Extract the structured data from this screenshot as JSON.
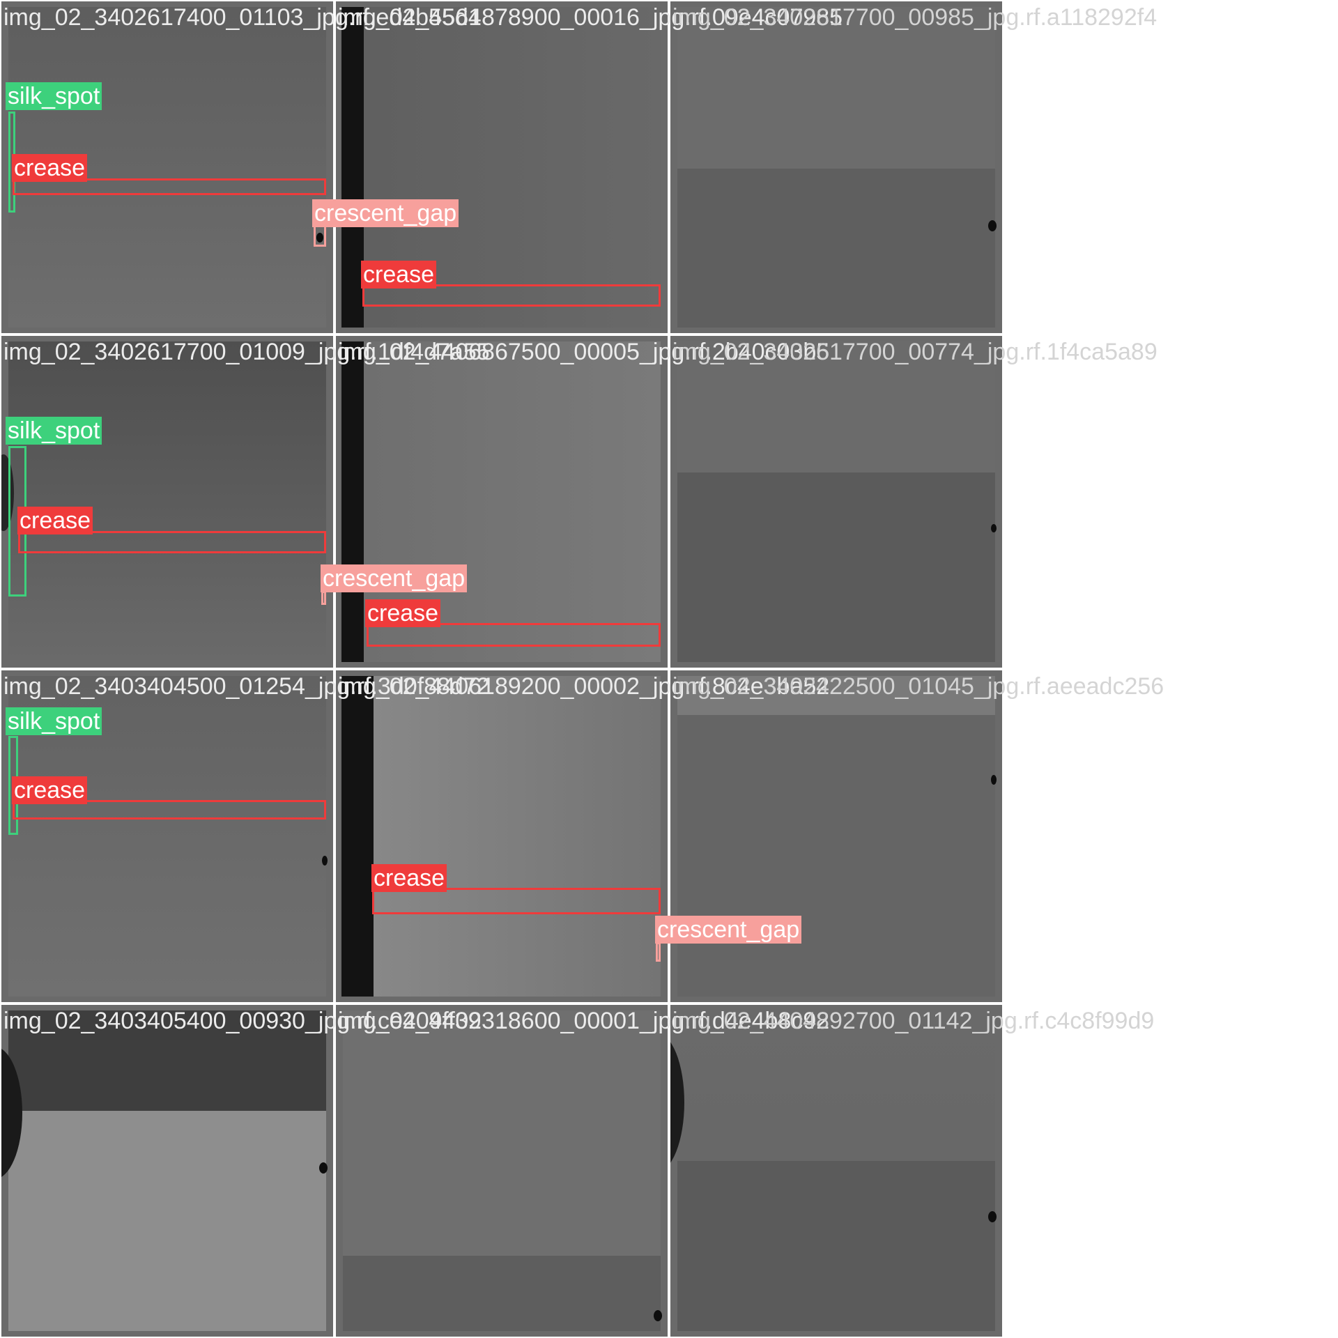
{
  "grid": {
    "tiles": [
      {
        "filename": "img_02_3402617400_01103_jpg.rf.ed4b55d4"
      },
      {
        "filename": "img_02_4561878900_00016_jpg.rf.09e4c07985"
      },
      {
        "filename": "img_02_3402617700_00985_jpg.rf.a118292f4"
      },
      {
        "filename": "img_02_3402617700_01009_jpg.rf.1df4d7a55"
      },
      {
        "filename": "img_02_4406867500_00005_jpg.rf.2b40c03b5"
      },
      {
        "filename": "img_02_3402617700_00774_jpg.rf.1f4ca5a89"
      },
      {
        "filename": "img_02_3403404500_01254_jpg.rf.3d0f88d72"
      },
      {
        "filename": "img_02_4406189200_00002_jpg.rf.8c4e3ba52"
      },
      {
        "filename": "img_02_3402422500_01045_jpg.rf.aeeadc256"
      },
      {
        "filename": "img_02_3403405400_00930_jpg.rf.ce409ff39"
      },
      {
        "filename": "img_02_4402318600_00001_jpg.rf.d4e4b8c92"
      },
      {
        "filename": "img_02_4404892700_01142_jpg.rf.c4c8f99d9"
      }
    ]
  },
  "labels": {
    "silk_spot": "silk_spot",
    "crease": "crease",
    "crescent_gap": "crescent_gap"
  },
  "colors": {
    "silk_spot": "#3dd17c",
    "crease": "#ef3b3b",
    "crescent_gap": "#f7a09c"
  }
}
